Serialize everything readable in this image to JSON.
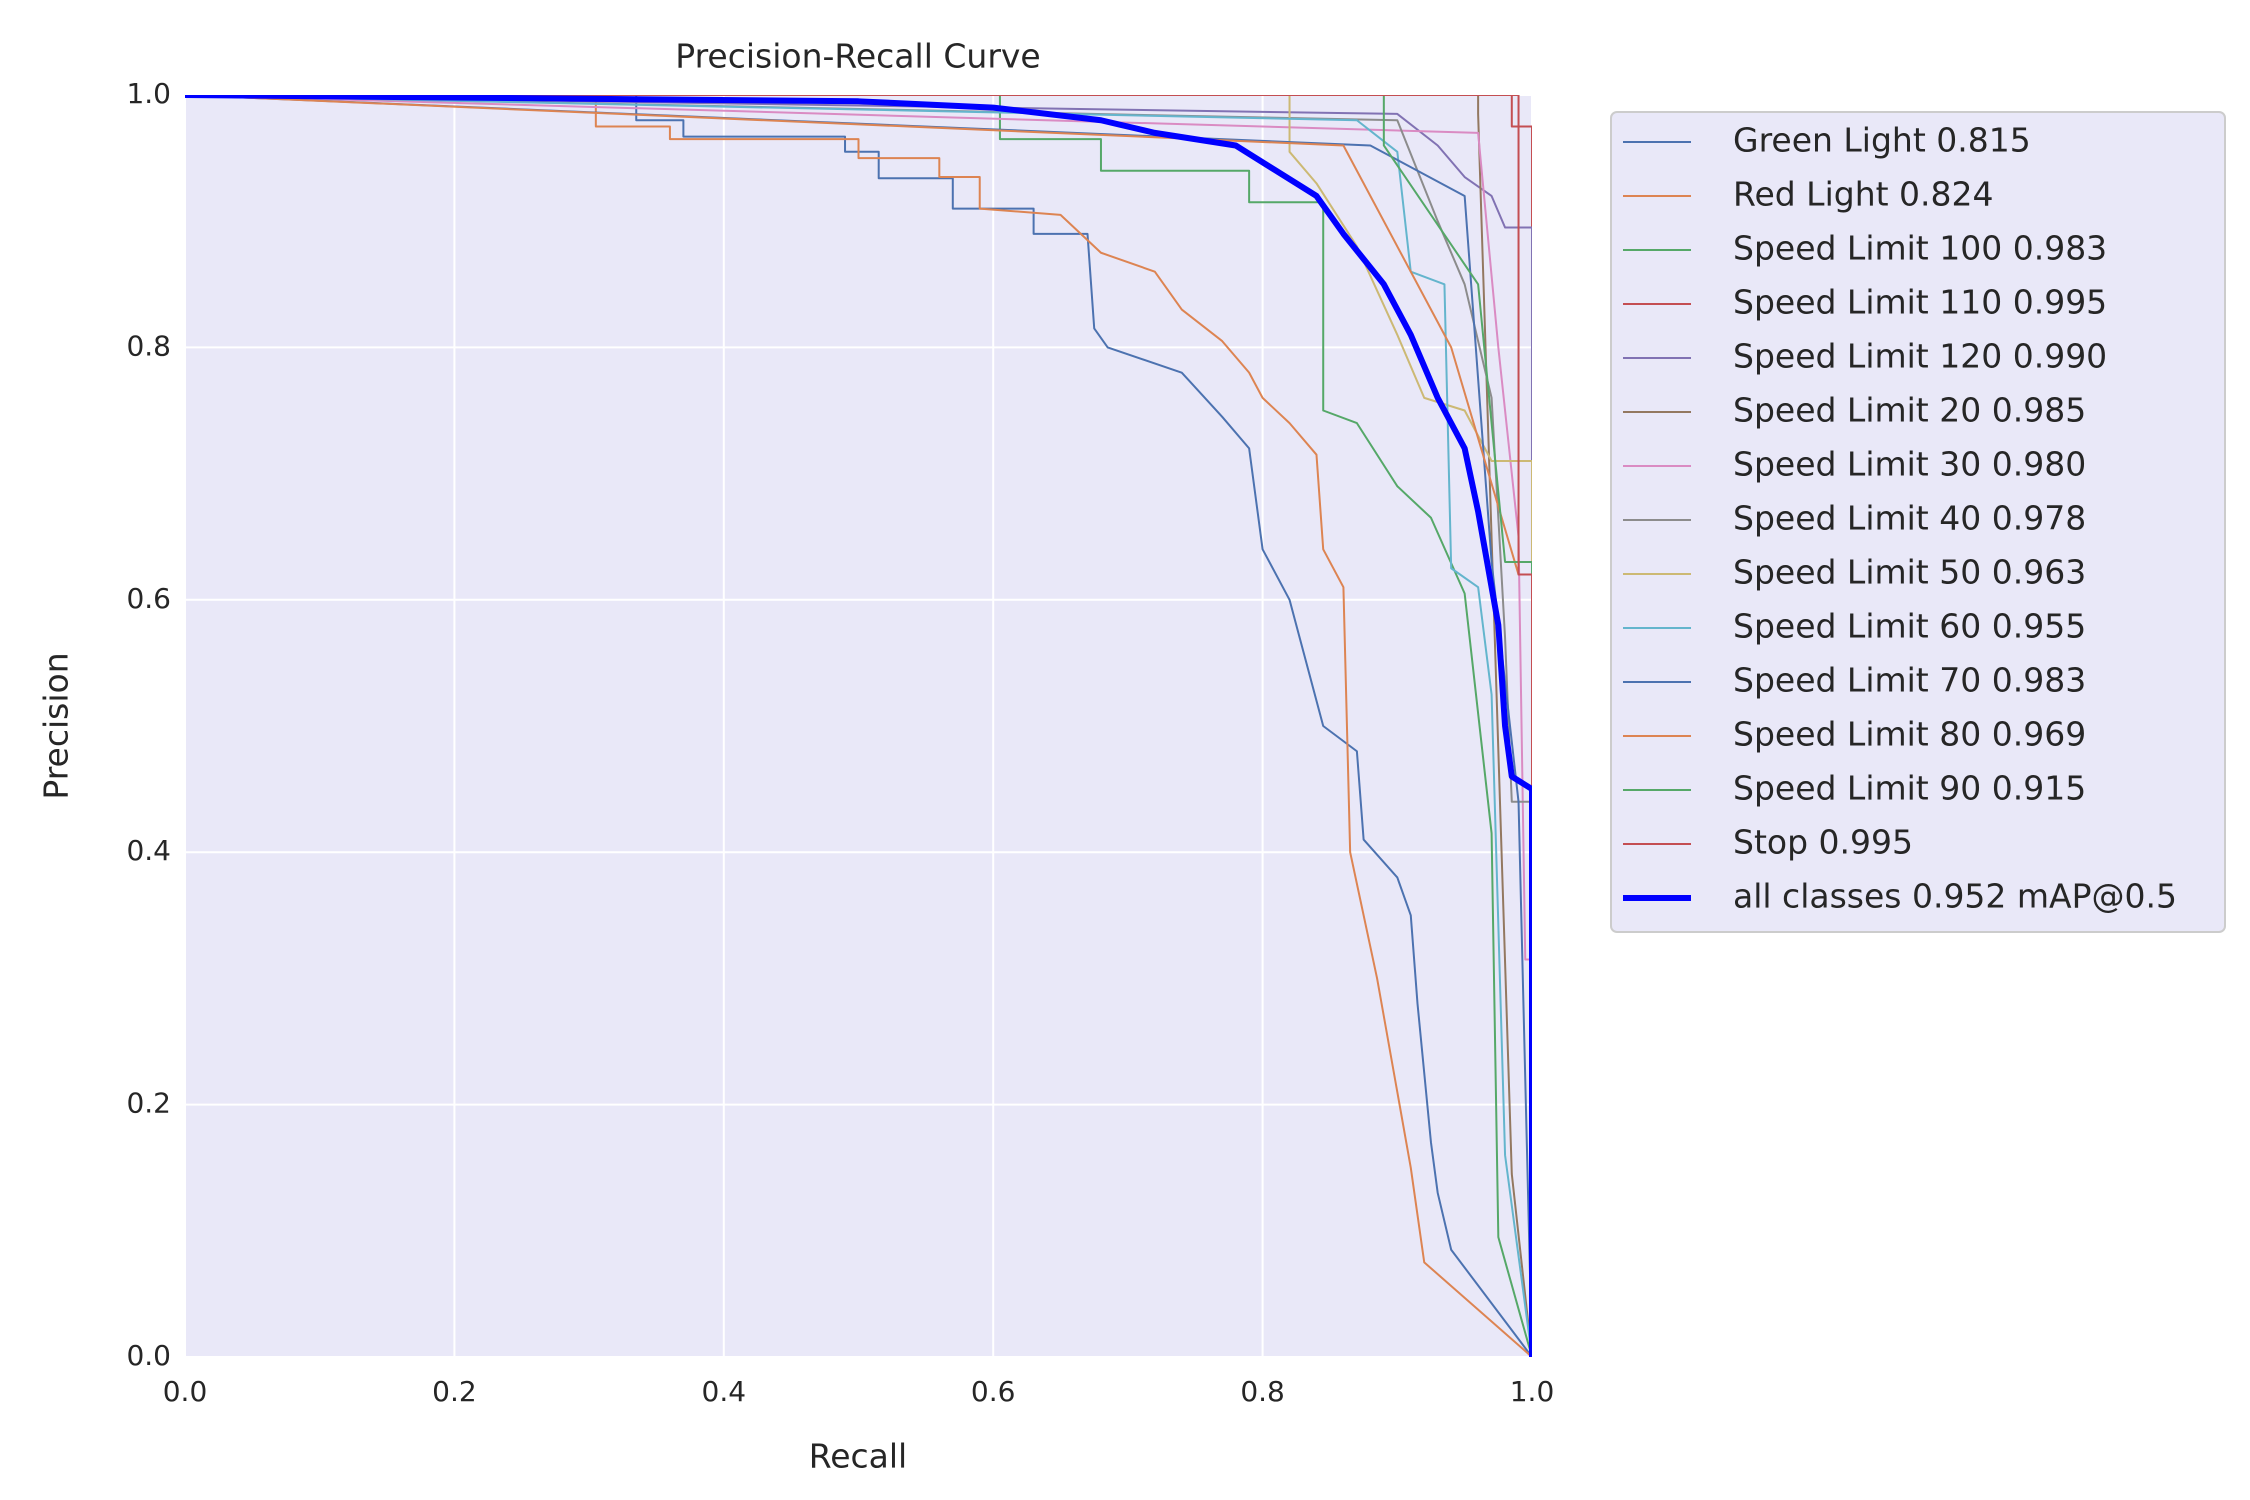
{
  "chart_data": {
    "type": "line",
    "title": "Precision-Recall Curve",
    "x_label": "Recall",
    "y_label": "Precision",
    "xlim": [
      0,
      1
    ],
    "ylim": [
      0,
      1
    ],
    "xticks": [
      {
        "value": 0,
        "label": "0.0"
      },
      0.2,
      0.4,
      0.6,
      0.8,
      {
        "value": 1,
        "label": "1.0"
      }
    ],
    "yticks": [
      {
        "value": 0,
        "label": "0.0"
      },
      0.2,
      0.4,
      0.6,
      0.8,
      {
        "value": 1,
        "label": "1.0"
      }
    ],
    "grid": true,
    "legend": "outside right",
    "series": [
      {
        "name": "Green Light 0.815",
        "color": "#4c72b0",
        "x": [
          0,
          0.335,
          0.335,
          0.37,
          0.37,
          0.49,
          0.49,
          0.515,
          0.515,
          0.57,
          0.57,
          0.63,
          0.63,
          0.67,
          0.675,
          0.685,
          0.74,
          0.77,
          0.79,
          0.8,
          0.82,
          0.83,
          0.845,
          0.87,
          0.875,
          0.9,
          0.91,
          0.915,
          0.925,
          0.93,
          0.94,
          1.0
        ],
        "values": [
          1.0,
          1.0,
          0.98,
          0.98,
          0.967,
          0.967,
          0.955,
          0.955,
          0.934,
          0.934,
          0.91,
          0.91,
          0.89,
          0.89,
          0.815,
          0.8,
          0.78,
          0.745,
          0.72,
          0.64,
          0.6,
          0.56,
          0.5,
          0.48,
          0.41,
          0.38,
          0.35,
          0.28,
          0.17,
          0.13,
          0.085,
          0
        ]
      },
      {
        "name": "Red Light 0.824",
        "color": "#dd8452",
        "x": [
          0,
          0.305,
          0.305,
          0.36,
          0.36,
          0.5,
          0.5,
          0.56,
          0.56,
          0.59,
          0.59,
          0.65,
          0.68,
          0.72,
          0.74,
          0.77,
          0.79,
          0.8,
          0.82,
          0.84,
          0.845,
          0.86,
          0.865,
          0.875,
          0.885,
          0.89,
          0.9,
          0.91,
          0.92,
          1.0
        ],
        "values": [
          1.0,
          1.0,
          0.975,
          0.975,
          0.965,
          0.965,
          0.95,
          0.95,
          0.935,
          0.935,
          0.91,
          0.905,
          0.875,
          0.86,
          0.83,
          0.805,
          0.78,
          0.76,
          0.74,
          0.715,
          0.64,
          0.61,
          0.4,
          0.35,
          0.3,
          0.27,
          0.21,
          0.15,
          0.075,
          0
        ]
      },
      {
        "name": "Speed Limit 100 0.983",
        "color": "#55a868",
        "x": [
          0,
          0.605,
          0.605,
          0.68,
          0.68,
          0.79,
          0.79,
          0.845,
          0.845,
          0.87,
          0.9,
          0.925,
          0.95,
          0.97,
          0.975,
          1.0
        ],
        "values": [
          1.0,
          1.0,
          0.965,
          0.965,
          0.94,
          0.94,
          0.915,
          0.915,
          0.75,
          0.74,
          0.69,
          0.665,
          0.605,
          0.415,
          0.095,
          0
        ]
      },
      {
        "name": "Speed Limit 110 0.995",
        "color": "#c44e52",
        "x": [
          0,
          0.985,
          0.985,
          1.0,
          1.0
        ],
        "values": [
          1.0,
          1.0,
          0.975,
          0.975,
          0
        ]
      },
      {
        "name": "Speed Limit 120 0.990",
        "color": "#8172b3",
        "x": [
          0,
          0.9,
          0.93,
          0.95,
          0.97,
          0.98,
          1.0,
          1.0
        ],
        "values": [
          1.0,
          0.985,
          0.96,
          0.935,
          0.92,
          0.895,
          0.895,
          0
        ]
      },
      {
        "name": "Speed Limit 20 0.985",
        "color": "#937860",
        "x": [
          0,
          0.96,
          0.96,
          0.985,
          1.0
        ],
        "values": [
          1.0,
          1.0,
          0.985,
          0.145,
          0
        ]
      },
      {
        "name": "Speed Limit 30 0.980",
        "color": "#da8bc3",
        "x": [
          0,
          0.96,
          0.975,
          0.99,
          0.995,
          1.0,
          1.0
        ],
        "values": [
          1.0,
          0.97,
          0.8,
          0.65,
          0.315,
          0.315,
          0
        ]
      },
      {
        "name": "Speed Limit 40 0.978",
        "color": "#8c8c8c",
        "x": [
          0,
          0.9,
          0.93,
          0.95,
          0.97,
          0.98,
          0.985,
          1.0,
          1.0
        ],
        "values": [
          1.0,
          0.98,
          0.9,
          0.85,
          0.76,
          0.57,
          0.44,
          0.44,
          0
        ]
      },
      {
        "name": "Speed Limit 50 0.963",
        "color": "#ccb974",
        "x": [
          0,
          0.82,
          0.82,
          0.84,
          0.87,
          0.9,
          0.92,
          0.95,
          0.97,
          1.0,
          1.0
        ],
        "values": [
          1.0,
          1.0,
          0.955,
          0.93,
          0.88,
          0.81,
          0.76,
          0.75,
          0.71,
          0.71,
          0
        ]
      },
      {
        "name": "Speed Limit 60 0.955",
        "color": "#64b5cd",
        "x": [
          0,
          0.87,
          0.9,
          0.91,
          0.935,
          0.94,
          0.96,
          0.97,
          0.98,
          1.0
        ],
        "values": [
          1.0,
          0.98,
          0.955,
          0.86,
          0.85,
          0.625,
          0.61,
          0.525,
          0.16,
          0
        ]
      },
      {
        "name": "Speed Limit 70 0.983",
        "color": "#4c72b0",
        "x": [
          0,
          0.88,
          0.95,
          0.97,
          0.99,
          1.0
        ],
        "values": [
          1.0,
          0.96,
          0.92,
          0.63,
          0.44,
          0
        ]
      },
      {
        "name": "Speed Limit 80 0.969",
        "color": "#dd8452",
        "x": [
          0,
          0.86,
          0.9,
          0.94,
          0.99,
          1.0,
          1.0
        ],
        "values": [
          1.0,
          0.96,
          0.88,
          0.8,
          0.62,
          0.62,
          0
        ]
      },
      {
        "name": "Speed Limit 90 0.915",
        "color": "#55a868",
        "x": [
          0,
          0.89,
          0.89,
          0.96,
          0.98,
          1.0,
          1.0
        ],
        "values": [
          1.0,
          1.0,
          0.96,
          0.85,
          0.63,
          0.63,
          0
        ]
      },
      {
        "name": "Stop 0.995",
        "color": "#c44e52",
        "x": [
          0,
          0.99,
          0.99,
          1.0,
          1.0
        ],
        "values": [
          1.0,
          1.0,
          0.62,
          0.62,
          0
        ]
      },
      {
        "name": "all classes 0.952 mAP@0.5",
        "color": "#0000ff",
        "x": [
          0,
          0.5,
          0.6,
          0.68,
          0.72,
          0.78,
          0.81,
          0.84,
          0.86,
          0.89,
          0.91,
          0.93,
          0.95,
          0.96,
          0.975,
          0.98,
          0.985,
          1.0,
          1.0
        ],
        "values": [
          1.0,
          0.995,
          0.99,
          0.98,
          0.97,
          0.96,
          0.94,
          0.92,
          0.89,
          0.85,
          0.81,
          0.76,
          0.72,
          0.67,
          0.58,
          0.5,
          0.46,
          0.45,
          0
        ]
      }
    ]
  }
}
